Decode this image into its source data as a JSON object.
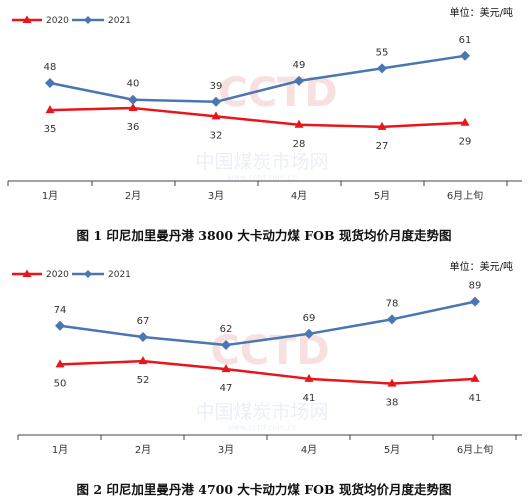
{
  "chart_data": [
    {
      "type": "line",
      "title": "图 1 印尼加里曼丹港 3800 大卡动力煤 FOB 现货均价月度走势图",
      "unit_label": "单位：美元/吨",
      "categories": [
        "1月",
        "2月",
        "3月",
        "4月",
        "5月",
        "6月上旬"
      ],
      "series": [
        {
          "name": "2020",
          "color": "#e8161b",
          "marker": "triangle",
          "values": [
            35,
            36,
            32,
            28,
            27,
            29
          ]
        },
        {
          "name": "2021",
          "color": "#4a76b1",
          "marker": "diamond",
          "values": [
            48,
            40,
            39,
            49,
            55,
            61
          ]
        }
      ],
      "grid": false,
      "legend": "top-left"
    },
    {
      "type": "line",
      "title": "图 2 印尼加里曼丹港 4700 大卡动力煤 FOB 现货均价月度走势图",
      "unit_label": "单位：美元/吨",
      "categories": [
        "1月",
        "2月",
        "3月",
        "4月",
        "5月",
        "6月上旬"
      ],
      "series": [
        {
          "name": "2020",
          "color": "#e8161b",
          "marker": "triangle",
          "values": [
            50,
            52,
            47,
            41,
            38,
            41
          ]
        },
        {
          "name": "2021",
          "color": "#4a76b1",
          "marker": "diamond",
          "values": [
            74,
            67,
            62,
            69,
            78,
            89
          ]
        }
      ],
      "grid": false,
      "legend": "top-left"
    }
  ],
  "watermark": {
    "logo_text": "CCTD",
    "cn_text": "中国煤炭市场网",
    "url_text": "www.cctd.com.cn"
  }
}
